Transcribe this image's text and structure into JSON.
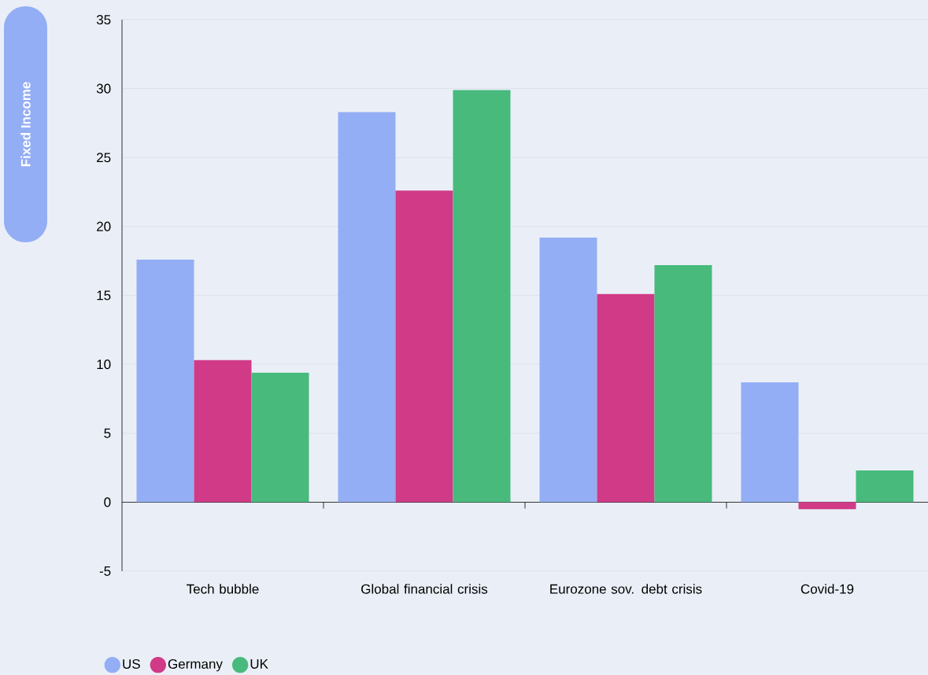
{
  "chart_data": {
    "type": "bar",
    "annotations": [
      "Fixed Income"
    ],
    "categories": [
      "Tech bubble",
      "Global financial crisis",
      "Eurozone sov. debt crisis",
      "Covid-19"
    ],
    "series": [
      {
        "name": "US",
        "color": "#94aef5",
        "values": [
          17.6,
          28.3,
          19.2,
          8.7
        ]
      },
      {
        "name": "Germany",
        "color": "#d03a87",
        "values": [
          10.3,
          22.6,
          15.1,
          -0.5
        ]
      },
      {
        "name": "UK",
        "color": "#48ba7c",
        "values": [
          9.4,
          29.9,
          17.2,
          2.3
        ]
      }
    ],
    "ylim": [
      -5,
      35
    ],
    "yticks": [
      -5,
      0,
      5,
      10,
      15,
      20,
      25,
      30,
      35
    ],
    "grid": "y",
    "legend": "bottom left"
  }
}
